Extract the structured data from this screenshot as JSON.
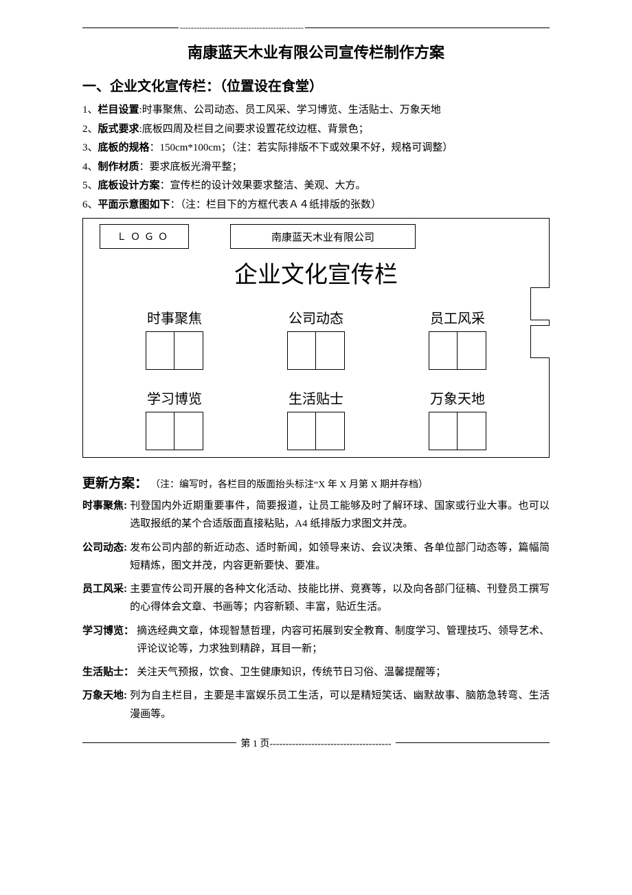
{
  "top_dashes": "---------------------------------------------",
  "title": "南康蓝天木业有限公司宣传栏制作方案",
  "section1_heading": "一、企业文化宣传栏：（位置设在食堂）",
  "items": [
    {
      "num": "1、",
      "label": "栏目设置",
      "sep": ":",
      "text": "时事聚焦、公司动态、员工风采、学习博览、生活贴士、万象天地"
    },
    {
      "num": "2、",
      "label": "版式要求",
      "sep": ":",
      "text": "底板四周及栏目之间要求设置花纹边框、背景色；"
    },
    {
      "num": "3、",
      "label": "底板的规格",
      "sep": "：",
      "text": "150cm*100cm；（注：若实际排版不下或效果不好，规格可调整）"
    },
    {
      "num": "4、",
      "label": "制作材质",
      "sep": "：",
      "text": "要求底板光滑平整；"
    },
    {
      "num": "5、",
      "label": "底板设计方案",
      "sep": "：",
      "text": "宣传栏的设计效果要求整洁、美观、大方。"
    },
    {
      "num": "6、",
      "label": "平面示意图如下",
      "sep": "：",
      "text": "（注：栏目下的方框代表Ａ４纸排版的张数）"
    }
  ],
  "diagram": {
    "logo": "ＬＯＧＯ",
    "company": "南康蓝天木业有限公司",
    "big_title": "企业文化宣传栏",
    "row1": [
      "时事聚焦",
      "公司动态",
      "员工风采"
    ],
    "row2": [
      "学习博览",
      "生活贴士",
      "万象天地"
    ]
  },
  "update_heading": "更新方案：",
  "update_note": "（注：编写时，各栏目的版面抬头标注“X 年 X 月第 X 期并存档）",
  "paras": [
    {
      "label": "时事聚焦",
      "sep": ":",
      "body": "刊登国内外近期重要事件，简要报道，让员工能够及时了解环球、国家或行业大事。也可以选取报纸的某个合适版面直接粘贴，A4 纸排版力求图文并茂。"
    },
    {
      "label": "公司动态",
      "sep": ":",
      "body": "发布公司内部的新近动态、适时新闻，如领导来访、会议决策、各单位部门动态等，篇幅简短精炼，图文并茂，内容更新要快、要准。"
    },
    {
      "label": "员工风采",
      "sep": ":",
      "body": "主要宣传公司开展的各种文化活动、技能比拼、竞赛等，以及向各部门征稿、刊登员工撰写的心得体会文章、书画等；内容新颖、丰富，贴近生活。"
    },
    {
      "label": "学习博览",
      "sep": "：",
      "body": "摘选经典文章，体现智慧哲理，内容可拓展到安全教育、制度学习、管理技巧、领导艺术、评论议论等，力求独到精辟，耳目一新；"
    },
    {
      "label": "生活贴士",
      "sep": "：",
      "body": "关注天气预报，饮食、卫生健康知识，传统节日习俗、温馨提醒等；"
    },
    {
      "label": "万象天地",
      "sep": ":",
      "body": "列为自主栏目，主要是丰富娱乐员工生活，可以是精短笑话、幽默故事、脑筋急转弯、生活漫画等。"
    }
  ],
  "footer": {
    "page_label": "第 1 页",
    "dashes": "--------------------------------------"
  }
}
